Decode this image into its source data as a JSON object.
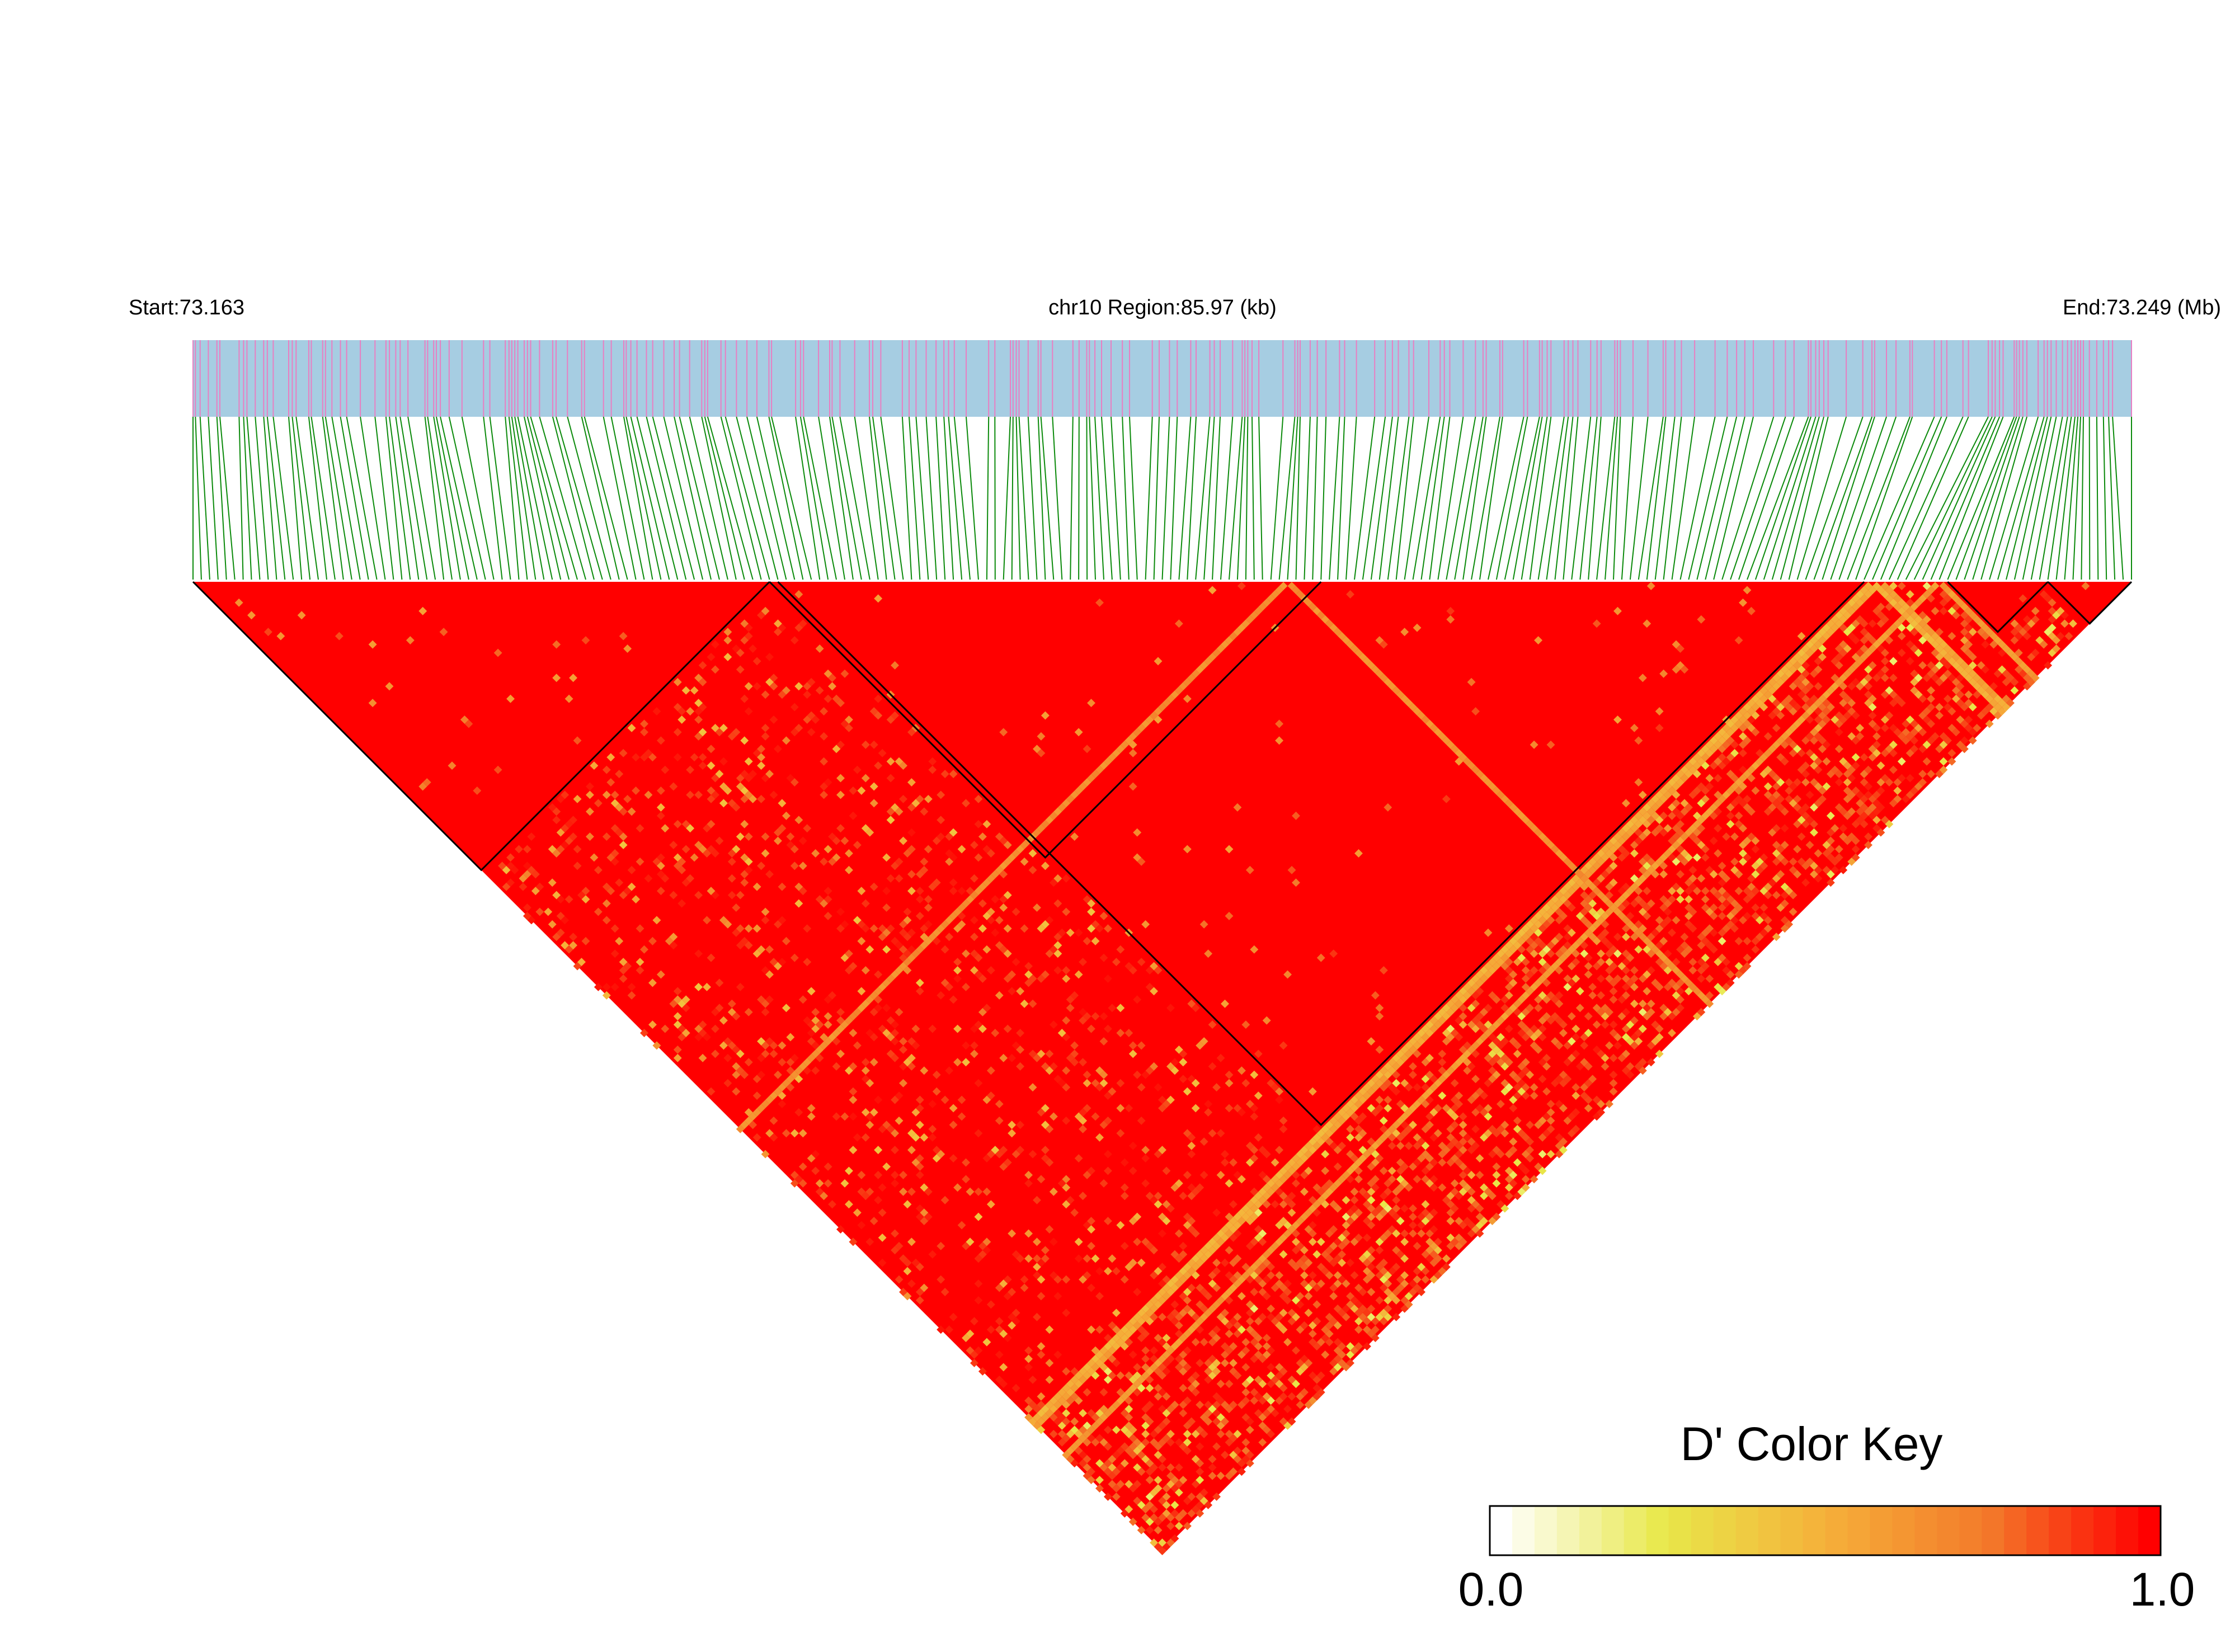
{
  "chart_data": {
    "type": "heatmap",
    "header": {
      "start_label": "Start:73.163",
      "region_label": "chr10 Region:85.97 (kb)",
      "end_label": "End:73.249 (Mb)"
    },
    "region": {
      "chromosome": "chr10",
      "start_mb": 73.163,
      "end_mb": 73.249,
      "length_kb": 85.97
    },
    "snp_count": 233,
    "dominant_dprime": 1.0,
    "ld_blocks": [
      {
        "first_snp": 0,
        "last_snp": 69
      },
      {
        "first_snp": 69,
        "last_snp": 135
      },
      {
        "first_snp": 70,
        "last_snp": 200
      },
      {
        "first_snp": 210,
        "last_snp": 222
      },
      {
        "first_snp": 222,
        "last_snp": 232
      }
    ],
    "low_dprime_lines": [
      {
        "snp": 131,
        "value": 0.65
      },
      {
        "snp": 201,
        "value": 0.5
      },
      {
        "snp": 202,
        "value": 0.55
      },
      {
        "snp": 209,
        "value": 0.6
      }
    ],
    "color_key": {
      "title": "D' Color Key",
      "min_label": "0.0",
      "max_label": "1.0",
      "min": 0.0,
      "max": 1.0,
      "colors": [
        "#ffffff",
        "#e8e84a",
        "#f5b03a",
        "#f37a2a",
        "#ff0000"
      ]
    },
    "colors": {
      "track": "#a6cde2",
      "snp_tick": "#e87fc2",
      "connector": "#0b8a0b",
      "high_ld": "#ff0000"
    }
  }
}
